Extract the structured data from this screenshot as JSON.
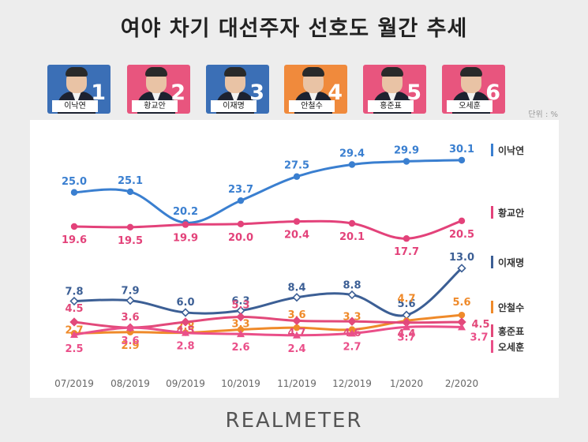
{
  "title": "여야 차기 대선주자 선호도 월간 추세",
  "unit_label": "단위 : %",
  "brand": "REALMETER",
  "candidates": [
    {
      "name": "이낙연",
      "rank": "1",
      "color": "#3b6fb6"
    },
    {
      "name": "황교안",
      "rank": "2",
      "color": "#e8557e"
    },
    {
      "name": "이재명",
      "rank": "3",
      "color": "#3b6fb6"
    },
    {
      "name": "안철수",
      "rank": "4",
      "color": "#f08a3c"
    },
    {
      "name": "홍준표",
      "rank": "5",
      "color": "#e8557e"
    },
    {
      "name": "오세훈",
      "rank": "6",
      "color": "#e8557e"
    }
  ],
  "chart_data": {
    "type": "line",
    "title": "여야 차기 대선주자 선호도 월간 추세",
    "xlabel": "",
    "ylabel": "",
    "unit": "%",
    "categories": [
      "07/2019",
      "08/2019",
      "09/2019",
      "10/2019",
      "11/2019",
      "12/2019",
      "1/2020",
      "2/2020"
    ],
    "ylim": [
      0,
      32
    ],
    "grid": false,
    "legend_placement": "right",
    "series": [
      {
        "name": "이낙연",
        "color": "#3a7fd0",
        "values": [
          25.0,
          25.1,
          20.2,
          23.7,
          27.5,
          29.4,
          29.9,
          30.1
        ]
      },
      {
        "name": "황교안",
        "color": "#e3427a",
        "values": [
          19.6,
          19.5,
          19.9,
          20.0,
          20.4,
          20.1,
          17.7,
          20.5
        ]
      },
      {
        "name": "이재명",
        "color": "#3c5f95",
        "values": [
          7.8,
          7.9,
          6.0,
          6.3,
          8.4,
          8.8,
          5.6,
          13.0
        ]
      },
      {
        "name": "안철수",
        "color": "#ef8a2a",
        "values": [
          2.7,
          2.9,
          2.8,
          3.3,
          3.6,
          3.3,
          4.7,
          5.6
        ]
      },
      {
        "name": "홍준표",
        "color": "#e2497a",
        "values": [
          4.5,
          3.6,
          4.5,
          5.3,
          4.7,
          4.6,
          4.4,
          4.5
        ]
      },
      {
        "name": "오세훈",
        "color": "#ea4f89",
        "values": [
          2.5,
          3.6,
          2.8,
          2.6,
          2.4,
          2.7,
          3.7,
          3.7
        ]
      }
    ]
  }
}
